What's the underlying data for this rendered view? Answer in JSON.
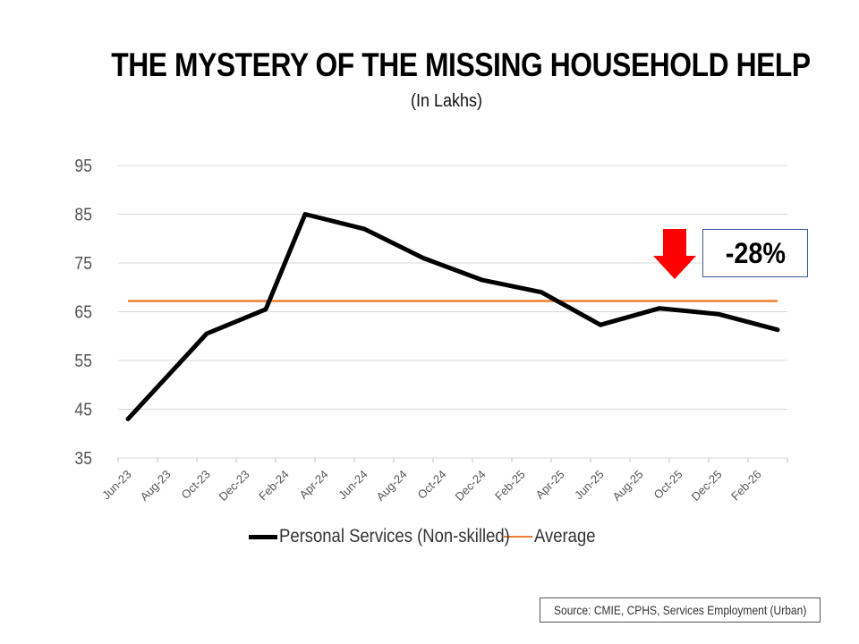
{
  "title": "THE MYSTERY OF THE MISSING HOUSEHOLD HELP",
  "subtitle": "(In Lakhs)",
  "callout": "-28%",
  "source": "Source: CMIE, CPHS, Services Employment (Urban)",
  "colors": {
    "series": "#000000",
    "average": "#ED7D31",
    "arrow": "#FF0000",
    "grid": "#D9D9D9",
    "callout_border": "#3D5A99"
  },
  "icons": {
    "callout_arrow": "down-arrow-icon"
  },
  "chart_data": {
    "type": "line",
    "x": [
      "Jun-23",
      "Jul-23",
      "Aug-23",
      "Sep-23",
      "Oct-23",
      "Nov-23",
      "Dec-23",
      "Jan-24",
      "Feb-24",
      "Mar-24",
      "Apr-24",
      "May-24",
      "Jun-24",
      "Jul-24",
      "Aug-24",
      "Sep-24",
      "Oct-24",
      "Nov-24",
      "Dec-24",
      "Jan-25",
      "Feb-25",
      "Mar-25",
      "Apr-25",
      "May-25",
      "Jun-25",
      "Jul-25",
      "Aug-25",
      "Sep-25",
      "Oct-25",
      "Nov-25",
      "Dec-25",
      "Jan-26",
      "Feb-26",
      "Mar-26"
    ],
    "tick_labels": [
      "Jun-23",
      "Aug-23",
      "Oct-23",
      "Dec-23",
      "Feb-24",
      "Apr-24",
      "Jun-24",
      "Aug-24",
      "Oct-24",
      "Dec-24",
      "Feb-25",
      "Apr-25",
      "Jun-25",
      "Aug-25",
      "Oct-25",
      "Dec-25",
      "Feb-26"
    ],
    "series": [
      {
        "name": "Personal Services (Non-skilled)",
        "points": [
          {
            "x": "Jun-23",
            "y": 43.0
          },
          {
            "x": "Oct-23",
            "y": 60.5
          },
          {
            "x": "Jan-24",
            "y": 65.5
          },
          {
            "x": "Mar-24",
            "y": 85.0
          },
          {
            "x": "Jun-24",
            "y": 82.0
          },
          {
            "x": "Sep-24",
            "y": 76.0
          },
          {
            "x": "Dec-24",
            "y": 71.5
          },
          {
            "x": "Mar-25",
            "y": 69.0
          },
          {
            "x": "Jun-25",
            "y": 62.3
          },
          {
            "x": "Sep-25",
            "y": 65.7
          },
          {
            "x": "Dec-25",
            "y": 64.5
          },
          {
            "x": "Mar-26",
            "y": 61.3
          }
        ]
      },
      {
        "name": "Average",
        "constant": 67.2
      }
    ],
    "ylim": [
      35,
      95
    ],
    "yticks": [
      35,
      45,
      55,
      65,
      75,
      85,
      95
    ],
    "grid": true,
    "legend": "bottom"
  }
}
